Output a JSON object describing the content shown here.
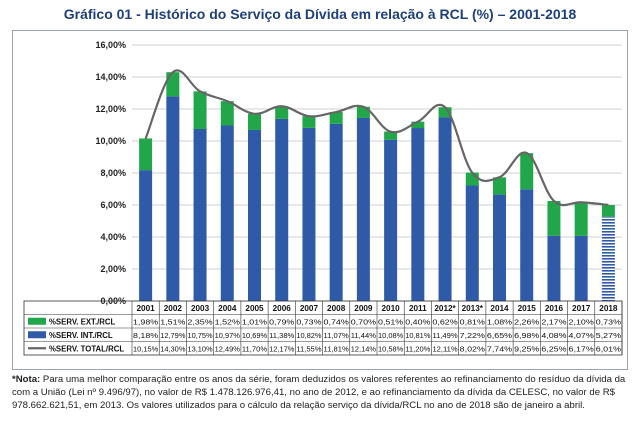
{
  "title": "Gráfico 01 - Histórico do Serviço da Dívida em relação à RCL (%) – 2001-2018",
  "note": {
    "prefix": "*Nota:",
    "text": " Para uma melhor comparação entre os anos da série, foram deduzidos os valores referentes ao refinanciamento do resíduo da dívida da com a União (Lei nº 9.496/97), no valor de R$ 1.478.126.976,41, no ano de 2012, e ao refinanciamento da dívida da CELESC, no valor de R$ 978.662.621,51, em 2013. Os valores utilizados para o cálculo da relação serviço da dívida/RCL no ano de 2018 são de janeiro a abril."
  },
  "colors": {
    "ext": "#22a64a",
    "int": "#2f5aa8",
    "total_line": "#666666",
    "int_2018_pattern": "#2f5aa8",
    "gridline": "#d0d0d0"
  },
  "chart_data": {
    "type": "bar",
    "stacked": true,
    "categories": [
      "2001",
      "2002",
      "2003",
      "2004",
      "2005",
      "2006",
      "2007",
      "2008",
      "2009",
      "2010",
      "2011",
      "2012*",
      "2013*",
      "2014",
      "2015",
      "2016",
      "2017",
      "2018"
    ],
    "series": [
      {
        "name": "%SERV. EXT./RCL",
        "kind": "bar",
        "values": [
          1.98,
          1.51,
          2.35,
          1.52,
          1.01,
          0.79,
          0.73,
          0.74,
          0.7,
          0.51,
          0.4,
          0.62,
          0.81,
          1.08,
          2.26,
          2.17,
          2.1,
          0.73
        ],
        "labels": [
          "1,98%",
          "1,51%",
          "2,35%",
          "1,52%",
          "1,01%",
          "0,79%",
          "0,73%",
          "0,74%",
          "0,70%",
          "0,51%",
          "0,40%",
          "0,62%",
          "0,81%",
          "1,08%",
          "2,26%",
          "2,17%",
          "2,10%",
          "0,73%"
        ]
      },
      {
        "name": "%SERV. INT./RCL",
        "kind": "bar",
        "values": [
          8.18,
          12.79,
          10.75,
          10.97,
          10.69,
          11.38,
          10.82,
          11.07,
          11.44,
          10.08,
          10.81,
          11.49,
          7.22,
          6.65,
          6.98,
          4.08,
          4.07,
          5.27
        ],
        "labels": [
          "8,18%",
          "12,79%",
          "10,75%",
          "10,97%",
          "10,69%",
          "11,38%",
          "10,82%",
          "11,07%",
          "11,44%",
          "10,08%",
          "10,81%",
          "11,49%",
          "7,22%",
          "6,65%",
          "6,98%",
          "4,08%",
          "4,07%",
          "5,27%"
        ]
      },
      {
        "name": "%SERV. TOTAL/RCL",
        "kind": "line",
        "values": [
          10.15,
          14.3,
          13.1,
          12.49,
          11.7,
          12.17,
          11.55,
          11.81,
          12.14,
          10.58,
          11.2,
          12.11,
          8.02,
          7.74,
          9.25,
          6.25,
          6.17,
          6.01
        ],
        "labels": [
          "10,15%",
          "14,30%",
          "13,10%",
          "12,49%",
          "11,70%",
          "12,17%",
          "11,55%",
          "11,81%",
          "12,14%",
          "10,58%",
          "11,20%",
          "12,11%",
          "8,02%",
          "7,74%",
          "9,25%",
          "6,25%",
          "6,17%",
          "6,01%"
        ]
      }
    ],
    "ylim": [
      0,
      16
    ],
    "yticks": [
      "0,00%",
      "2,00%",
      "4,00%",
      "6,00%",
      "8,00%",
      "10,00%",
      "12,00%",
      "14,00%",
      "16,00%"
    ],
    "grid": true,
    "legend": "table-below"
  }
}
